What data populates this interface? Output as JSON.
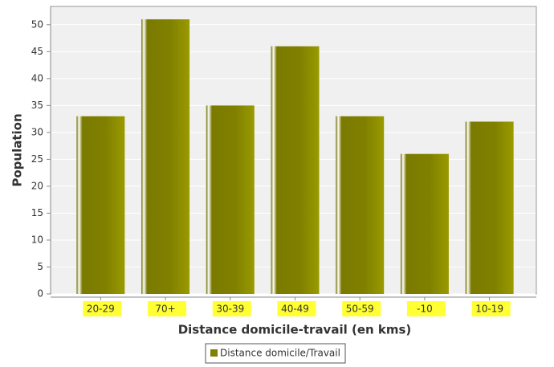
{
  "chart_data": {
    "type": "bar",
    "x_label": "Distance domicile-travail (en kms)",
    "y_label": "Population",
    "categories": [
      "20-29",
      "70+",
      "30-39",
      "40-49",
      "50-59",
      "-10",
      "10-19"
    ],
    "series": [
      {
        "name": "Distance domicile/Travail",
        "color": "#808000",
        "values": [
          33,
          51,
          35,
          46,
          33,
          26,
          32
        ]
      }
    ],
    "ylim": [
      0,
      53.4
    ],
    "yticks": [
      0,
      5,
      10,
      15,
      20,
      25,
      30,
      35,
      40,
      45,
      50
    ],
    "grid": true,
    "legend": "bottom"
  }
}
